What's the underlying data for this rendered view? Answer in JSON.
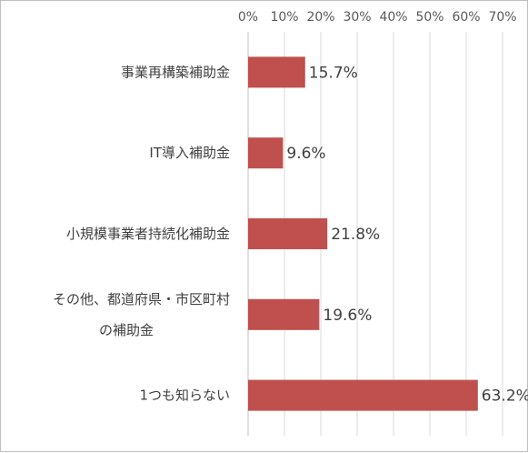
{
  "chart_data": {
    "type": "bar",
    "orientation": "horizontal",
    "categories": [
      [
        "事業再構築補助金"
      ],
      [
        "IT導入補助金"
      ],
      [
        "小規模事業者持続化補助金"
      ],
      [
        "その他、都道府県・市区町村",
        "の補助金"
      ],
      [
        "1つも知らない"
      ]
    ],
    "values": [
      15.7,
      9.6,
      21.8,
      19.6,
      63.2
    ],
    "value_labels": [
      "15.7%",
      "9.6%",
      "21.8%",
      "19.6%",
      "63.2%"
    ],
    "x_ticks": [
      "0%",
      "10%",
      "20%",
      "30%",
      "40%",
      "50%",
      "60%",
      "70%"
    ],
    "xlim": [
      0,
      70
    ],
    "axis_position": "top",
    "grid": true,
    "bar_color": "#c0504d"
  }
}
